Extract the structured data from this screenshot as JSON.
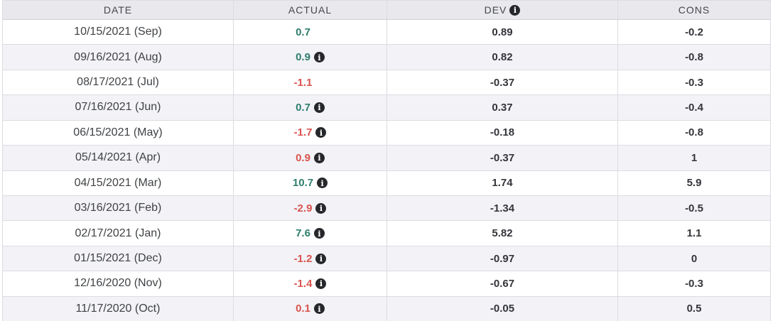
{
  "colors": {
    "positive": "#2e7d6c",
    "negative": "#d9544d",
    "header_bg": "#e8e8ed",
    "alt_row_bg": "#f2f2f7",
    "border": "#dcdce1",
    "header_border": "#cfcfd4"
  },
  "table": {
    "columns": [
      {
        "label": "DATE",
        "has_info_icon": false
      },
      {
        "label": "ACTUAL",
        "has_info_icon": false
      },
      {
        "label": "DEV",
        "has_info_icon": true
      },
      {
        "label": "CONS",
        "has_info_icon": false
      }
    ],
    "rows": [
      {
        "date": "10/15/2021 (Sep)",
        "actual": "0.7",
        "actual_color": "positive",
        "actual_info": false,
        "dev": "0.89",
        "cons": "-0.2"
      },
      {
        "date": "09/16/2021 (Aug)",
        "actual": "0.9",
        "actual_color": "positive",
        "actual_info": true,
        "dev": "0.82",
        "cons": "-0.8"
      },
      {
        "date": "08/17/2021 (Jul)",
        "actual": "-1.1",
        "actual_color": "negative",
        "actual_info": false,
        "dev": "-0.37",
        "cons": "-0.3"
      },
      {
        "date": "07/16/2021 (Jun)",
        "actual": "0.7",
        "actual_color": "positive",
        "actual_info": true,
        "dev": "0.37",
        "cons": "-0.4"
      },
      {
        "date": "06/15/2021 (May)",
        "actual": "-1.7",
        "actual_color": "negative",
        "actual_info": true,
        "dev": "-0.18",
        "cons": "-0.8"
      },
      {
        "date": "05/14/2021 (Apr)",
        "actual": "0.9",
        "actual_color": "negative",
        "actual_info": true,
        "dev": "-0.37",
        "cons": "1"
      },
      {
        "date": "04/15/2021 (Mar)",
        "actual": "10.7",
        "actual_color": "positive",
        "actual_info": true,
        "dev": "1.74",
        "cons": "5.9"
      },
      {
        "date": "03/16/2021 (Feb)",
        "actual": "-2.9",
        "actual_color": "negative",
        "actual_info": true,
        "dev": "-1.34",
        "cons": "-0.5"
      },
      {
        "date": "02/17/2021 (Jan)",
        "actual": "7.6",
        "actual_color": "positive",
        "actual_info": true,
        "dev": "5.82",
        "cons": "1.1"
      },
      {
        "date": "01/15/2021 (Dec)",
        "actual": "-1.2",
        "actual_color": "negative",
        "actual_info": true,
        "dev": "-0.97",
        "cons": "0"
      },
      {
        "date": "12/16/2020 (Nov)",
        "actual": "-1.4",
        "actual_color": "negative",
        "actual_info": true,
        "dev": "-0.67",
        "cons": "-0.3"
      },
      {
        "date": "11/17/2020 (Oct)",
        "actual": "0.1",
        "actual_color": "negative",
        "actual_info": true,
        "dev": "-0.05",
        "cons": "0.5"
      }
    ]
  }
}
